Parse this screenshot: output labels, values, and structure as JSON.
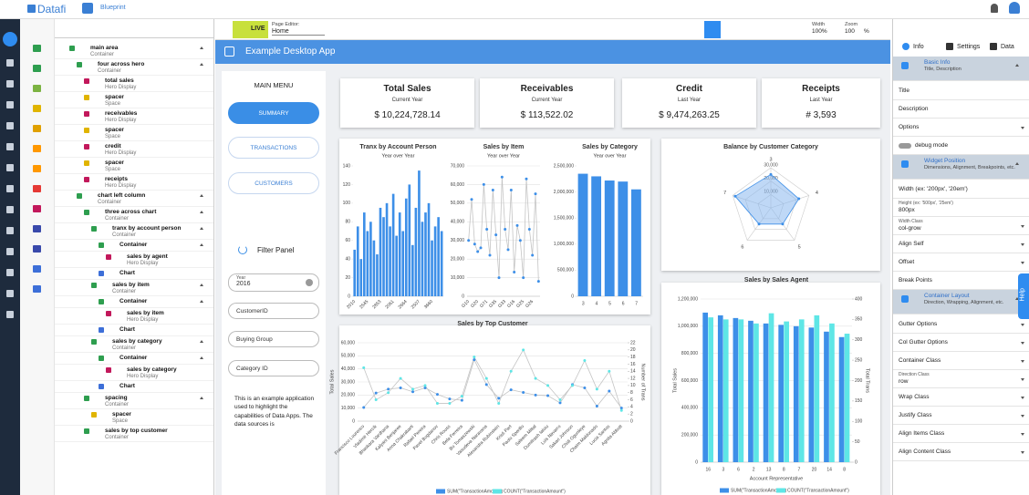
{
  "topbar": {
    "logo": "Datafi",
    "app": "Blueprint"
  },
  "toolbar": {
    "live": "LIVE",
    "page_editor": "Page Editor:",
    "page": "Home",
    "width_label": "Width",
    "width": "100%",
    "zoom_label": "Zoom",
    "zoom": "100",
    "zoom_unit": "%"
  },
  "app": {
    "title": "Example Desktop App"
  },
  "menu": {
    "title": "MAIN MENU",
    "buttons": [
      "SUMMARY",
      "TRANSACTIONS",
      "CUSTOMERS"
    ],
    "filter_title": "Filter Panel",
    "filters": [
      {
        "label": "Year",
        "value": "2016"
      },
      {
        "label": "CustomerID"
      },
      {
        "label": "Buying Group"
      },
      {
        "label": "Category ID"
      }
    ],
    "note": "This is an example application used to highlight the capabilities of Data Apps. The data sources is"
  },
  "hero": [
    {
      "title": "Total Sales",
      "sub": "Current Year",
      "value": "$ 10,224,728.14"
    },
    {
      "title": "Receivables",
      "sub": "Current Year",
      "value": "$ 113,522.02"
    },
    {
      "title": "Credit",
      "sub": "Last Year",
      "value": "$ 9,474,263.25"
    },
    {
      "title": "Receipts",
      "sub": "Last Year",
      "value": "# 3,593"
    }
  ],
  "tree": [
    {
      "label": "main area",
      "sub": "Container",
      "icon_color": "#2e9e4f",
      "children": [
        {
          "label": "four across hero",
          "sub": "Container",
          "icon_color": "#2e9e4f",
          "children": [
            {
              "label": "total sales",
              "sub": "Hero Display",
              "icon_color": "#c2185b"
            },
            {
              "label": "spacer",
              "sub": "Space",
              "icon_color": "#e0b400"
            },
            {
              "label": "receivables",
              "sub": "Hero Display",
              "icon_color": "#c2185b"
            },
            {
              "label": "spacer",
              "sub": "Space",
              "icon_color": "#e0b400"
            },
            {
              "label": "credit",
              "sub": "Hero Display",
              "icon_color": "#c2185b"
            },
            {
              "label": "spacer",
              "sub": "Space",
              "icon_color": "#e0b400"
            },
            {
              "label": "receipts",
              "sub": "Hero Display",
              "icon_color": "#c2185b"
            }
          ]
        },
        {
          "label": "chart left column",
          "sub": "Container",
          "icon_color": "#2e9e4f",
          "children": [
            {
              "label": "three across chart",
              "sub": "Container",
              "icon_color": "#2e9e4f",
              "children": [
                {
                  "label": "tranx by account person",
                  "sub": "Container",
                  "icon_color": "#2e9e4f",
                  "children": [
                    {
                      "label": "Container",
                      "icon_color": "#2e9e4f",
                      "children": [
                        {
                          "label": "sales by agent",
                          "sub": "Hero Display",
                          "icon_color": "#c2185b"
                        }
                      ]
                    },
                    {
                      "label": "Chart",
                      "icon_color": "#3d6fd8"
                    }
                  ]
                },
                {
                  "label": "sales by item",
                  "sub": "Container",
                  "icon_color": "#2e9e4f",
                  "children": [
                    {
                      "label": "Container",
                      "icon_color": "#2e9e4f",
                      "children": [
                        {
                          "label": "sales by item",
                          "sub": "Hero Display",
                          "icon_color": "#c2185b"
                        }
                      ]
                    },
                    {
                      "label": "Chart",
                      "icon_color": "#3d6fd8"
                    }
                  ]
                },
                {
                  "label": "sales by category",
                  "sub": "Container",
                  "icon_color": "#2e9e4f",
                  "children": [
                    {
                      "label": "Container",
                      "icon_color": "#2e9e4f",
                      "children": [
                        {
                          "label": "sales by category",
                          "sub": "Hero Display",
                          "icon_color": "#c2185b"
                        }
                      ]
                    },
                    {
                      "label": "Chart",
                      "icon_color": "#3d6fd8"
                    }
                  ]
                }
              ]
            },
            {
              "label": "spacing",
              "sub": "Container",
              "icon_color": "#2e9e4f",
              "children": [
                {
                  "label": "spacer",
                  "sub": "Space",
                  "icon_color": "#e0b400"
                }
              ]
            },
            {
              "label": "sales by top customer",
              "sub": "Container",
              "icon_color": "#2e9e4f"
            }
          ]
        }
      ]
    }
  ],
  "panel": {
    "tabs": [
      "Info",
      "Settings",
      "Data"
    ],
    "help": "Help",
    "items": [
      {
        "section": "Basic Info",
        "sub": "Title, Description"
      },
      {
        "label": "Title"
      },
      {
        "label": "Description"
      },
      {
        "label": "Options",
        "dropdown": true
      },
      {
        "label": "debug mode",
        "toggle": false
      },
      {
        "section": "Widget Position",
        "sub": "Dimensions, Alignment, Breakpoints, etc."
      },
      {
        "label": "Width (ex: '200px', '20em')"
      },
      {
        "label": "Height (ex: '500px', '25em')",
        "value": "800px"
      },
      {
        "label": "Width Class",
        "value": "col-grow",
        "dropdown": true
      },
      {
        "label": "Align Self",
        "dropdown": true
      },
      {
        "label": "Offset",
        "dropdown": true
      },
      {
        "label": "Break Points"
      },
      {
        "section": "Container Layout",
        "sub": "Direction, Wrapping, Alignment, etc."
      },
      {
        "label": "Gutter Options",
        "dropdown": true
      },
      {
        "label": "Col Gutter Options",
        "dropdown": true
      },
      {
        "label": "Container Class",
        "dropdown": true
      },
      {
        "label": "Direction Class",
        "value": "row",
        "dropdown": true
      },
      {
        "label": "Wrap Class",
        "dropdown": true
      },
      {
        "label": "Justify Class",
        "dropdown": true
      },
      {
        "label": "Align Items Class",
        "dropdown": true
      },
      {
        "label": "Align Content Class",
        "dropdown": true
      }
    ]
  },
  "chart_data": [
    {
      "type": "bar",
      "title": "Tranx by Account Person",
      "subtitle": "Year over Year",
      "color": "#3d8fe8",
      "grid": false,
      "categories": [
        "2010",
        null,
        null,
        null,
        "2545",
        null,
        null,
        null,
        "2853",
        null,
        null,
        null,
        "2061",
        null,
        null,
        null,
        "2664",
        null,
        null,
        null,
        "2507",
        null,
        null,
        null,
        "3660",
        null,
        null,
        null
      ],
      "values": [
        50,
        75,
        40,
        90,
        70,
        80,
        60,
        45,
        95,
        85,
        100,
        75,
        110,
        65,
        90,
        70,
        105,
        120,
        55,
        95,
        135,
        80,
        90,
        100,
        60,
        75,
        85,
        70
      ],
      "ylim": [
        0,
        140
      ],
      "yticks": [
        0,
        20,
        40,
        60,
        80,
        100,
        120,
        140
      ]
    },
    {
      "type": "line",
      "title": "Sales by Item",
      "subtitle": "Year over Year",
      "color": "#3d8fe8",
      "line_color": "#c4c4c4",
      "grid": true,
      "categories": [
        "G10",
        null,
        null,
        "G20",
        null,
        null,
        "G71",
        null,
        null,
        "G35",
        null,
        null,
        "G33",
        null,
        null,
        "G16",
        null,
        null,
        "G25",
        null,
        null,
        "G26",
        null,
        null
      ],
      "values": [
        30000,
        52000,
        28000,
        24000,
        26000,
        60000,
        36000,
        22000,
        57000,
        33000,
        10000,
        64000,
        36000,
        25000,
        57000,
        13000,
        38000,
        30000,
        10000,
        63000,
        36000,
        22000,
        55000,
        8000
      ],
      "ylim": [
        0,
        70000
      ],
      "yticks": [
        0,
        {
          "value": 10000,
          "label": "10,000"
        },
        {
          "value": 20000,
          "label": "20,000"
        },
        {
          "value": 30000,
          "label": "30,000"
        },
        {
          "value": 40000,
          "label": "40,000"
        },
        {
          "value": 50000,
          "label": "50,000"
        },
        {
          "value": 60000,
          "label": "60,000"
        },
        {
          "value": 70000,
          "label": "70,000"
        }
      ]
    },
    {
      "type": "bar",
      "title": "Sales by Category",
      "subtitle": "Year over Year",
      "color": "#3d8fe8",
      "grid": false,
      "categories": [
        "3",
        "4",
        "5",
        "6",
        "7"
      ],
      "values": [
        2350000,
        2300000,
        2220000,
        2200000,
        2050000
      ],
      "ylim": [
        0,
        2500000
      ],
      "yticks": [
        0,
        {
          "value": 500000,
          "label": "500,000"
        },
        {
          "value": 1000000,
          "label": "1,000,000"
        },
        {
          "value": 1500000,
          "label": "1,500,000"
        },
        {
          "value": 2000000,
          "label": "2,000,000"
        },
        {
          "value": 2500000,
          "label": "2,500,000"
        }
      ]
    },
    {
      "type": "radar",
      "title": "Balance by Customer Category",
      "color": "#7fb2ee",
      "categories": [
        "3",
        "4",
        "5",
        "6",
        "7"
      ],
      "values": [
        25000,
        22000,
        15000,
        15000,
        28000
      ],
      "rlim": [
        0,
        30000
      ],
      "rticks": [
        {
          "value": 10000,
          "label": "10,000"
        },
        {
          "value": 20000,
          "label": "20,000"
        },
        {
          "value": 30000,
          "label": "30,000"
        }
      ]
    },
    {
      "type": "line",
      "title": "Sales by Top Customer",
      "line_color": "#c4c4c4",
      "grid": true,
      "y_label": "Total Sales",
      "y2_label": "Number of Trans",
      "categories": [
        "Francisco Lourenco",
        "Vladimir Hercik",
        "Bhaskara Vardhana",
        "Kalyani Benjaree",
        "Anna Chakrabarti",
        "Rafael Pereira",
        "Pavel Bogdanov",
        "Chris Rouss",
        "Bela Ferreira",
        "Bo Tomaszewski",
        "Vasudeva Naravana",
        "Alexandra Rubinstein",
        "Kristi Part",
        "Paolo Sperillo",
        "Saleem Mittal",
        "Dumitrash Ialoiu",
        "Luis Navarro",
        "Sakari Johnson",
        "Chidi Ogunleye",
        "Chaim Maldonado",
        "Lucia Santos",
        "Agnita Abbott"
      ],
      "series": [
        {
          "name": "SUM(\"TransactionAmount\")",
          "color": "#3d8fe8",
          "values": [
            10500,
            21500,
            24500,
            25500,
            22500,
            25500,
            20500,
            17000,
            16000,
            47000,
            28000,
            17500,
            24000,
            22000,
            20000,
            19500,
            14000,
            28000,
            25500,
            11500,
            23000,
            10000
          ]
        },
        {
          "name": "COUNT(\"TransactionAmount\")",
          "color": "#5ee6e6",
          "axis": "y2",
          "values": [
            15,
            6,
            8,
            12,
            9,
            10,
            5,
            5,
            7,
            18,
            12,
            5,
            14,
            20,
            12,
            10,
            6,
            10,
            17,
            9,
            14,
            3
          ]
        }
      ],
      "ylim": [
        0,
        60000
      ],
      "yticks": [
        0,
        {
          "value": 10000,
          "label": "10,000"
        },
        {
          "value": 20000,
          "label": "20,000"
        },
        {
          "value": 30000,
          "label": "30,000"
        },
        {
          "value": 40000,
          "label": "40,000"
        },
        {
          "value": 50000,
          "label": "50,000"
        },
        {
          "value": 60000,
          "label": "60,000"
        }
      ],
      "y2lim": [
        0,
        22
      ],
      "y2ticks": [
        0,
        2,
        4,
        6,
        8,
        10,
        12,
        14,
        16,
        18,
        20,
        22
      ]
    },
    {
      "type": "bar",
      "title": "Sales by Sales Agent",
      "grid": true,
      "x_label": "Account Representative",
      "y_label": "Total Sales",
      "y2_label": "Total Trans",
      "categories": [
        "16",
        "3",
        "6",
        "2",
        "13",
        "8",
        "7",
        "20",
        "14",
        "8"
      ],
      "series": [
        {
          "name": "SUM(\"TransactionAmount\")",
          "color": "#3d8fe8",
          "values": [
            1100000,
            1080000,
            1060000,
            1040000,
            1020000,
            1010000,
            1000000,
            990000,
            960000,
            920000
          ]
        },
        {
          "name": "COUNT(\"TransactionAmount\")",
          "color": "#5ee6e6",
          "axis": "y2",
          "values": [
            355,
            350,
            350,
            340,
            365,
            345,
            350,
            360,
            340,
            315
          ]
        }
      ],
      "ylim": [
        0,
        1200000
      ],
      "yticks": [
        0,
        {
          "value": 200000,
          "label": "200,000"
        },
        {
          "value": 400000,
          "label": "400,000"
        },
        {
          "value": 600000,
          "label": "600,000"
        },
        {
          "value": 800000,
          "label": "800,000"
        },
        {
          "value": 1000000,
          "label": "1,000,000"
        },
        {
          "value": 1200000,
          "label": "1,200,000"
        }
      ],
      "y2lim": [
        0,
        400
      ],
      "y2ticks": [
        0,
        50,
        100,
        150,
        200,
        250,
        300,
        350,
        400
      ]
    }
  ]
}
